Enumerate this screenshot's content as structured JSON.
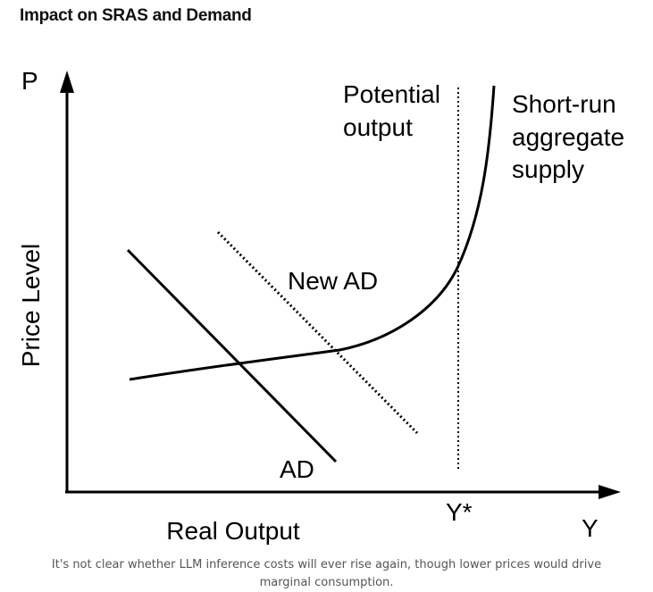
{
  "title": "Impact on SRAS and Demand",
  "diagram": {
    "y_axis_symbol": "P",
    "x_axis_symbol": "Y",
    "y_axis_label": "Price Level",
    "x_axis_label": "Real Output",
    "potential_output_label_line1": "Potential",
    "potential_output_label_line2": "output",
    "potential_output_tick": "Y*",
    "sras_label_line1": "Short-run",
    "sras_label_line2": "aggregate",
    "sras_label_line3": "supply",
    "new_ad_label": "New AD",
    "ad_label": "AD"
  },
  "caption": "It's not clear whether LLM inference costs will ever rise again, though lower prices would drive marginal consumption."
}
